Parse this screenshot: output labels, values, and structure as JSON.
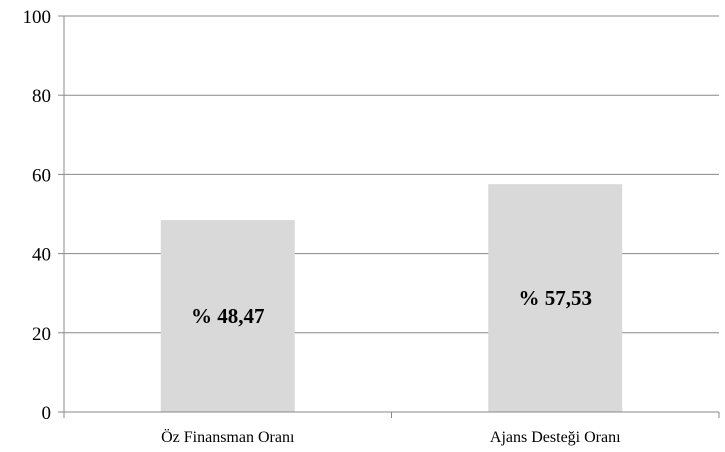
{
  "chart_data": {
    "type": "bar",
    "categories": [
      "Öz Finansman Oranı",
      "Ajans Desteği Oranı"
    ],
    "values": [
      48.47,
      57.53
    ],
    "data_labels": [
      "% 48,47",
      "% 57,53"
    ],
    "ylim": [
      0,
      100
    ],
    "yticks": [
      0,
      20,
      40,
      60,
      80,
      100
    ],
    "ytick_labels": [
      "0",
      "20",
      "40",
      "60",
      "80",
      "100"
    ],
    "grid": true,
    "legend": "none",
    "bar_color": "#d9d9d9",
    "grid_color": "#888888"
  }
}
